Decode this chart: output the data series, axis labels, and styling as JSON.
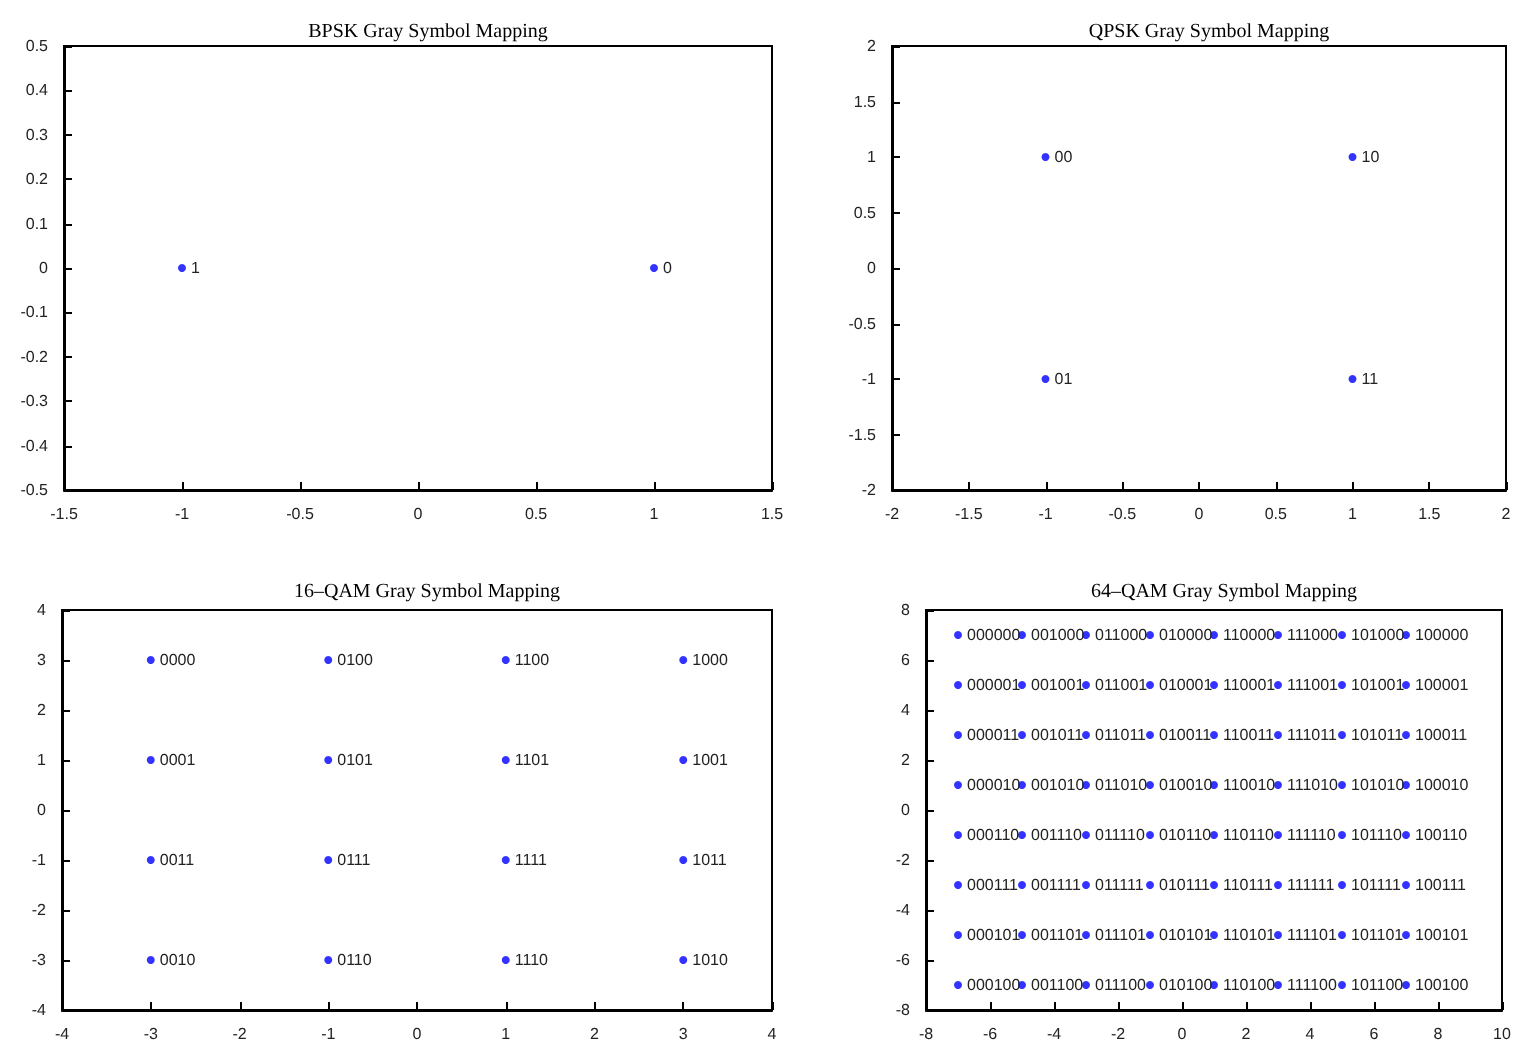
{
  "chart_data": [
    {
      "type": "scatter",
      "title": "BPSK Gray Symbol Mapping",
      "color": "#0000ff",
      "marker": "circle",
      "x": [
        -1,
        1
      ],
      "values": [
        0,
        0
      ],
      "annotations": [
        {
          "text": "1",
          "x": -1,
          "y": 0
        },
        {
          "text": "0",
          "x": 1,
          "y": 0
        }
      ],
      "xlim": [
        -1.5,
        1.5
      ],
      "xticks": [
        -1.5,
        -1,
        -0.5,
        0,
        0.5,
        1,
        1.5
      ],
      "ylim": [
        -0.5,
        0.5
      ],
      "yticks": [
        -0.5,
        -0.4,
        -0.3,
        -0.2,
        -0.1,
        0,
        0.1,
        0.2,
        0.3,
        0.4,
        0.5
      ]
    },
    {
      "type": "scatter",
      "title": "QPSK Gray Symbol Mapping",
      "color": "#0000ff",
      "marker": "circle",
      "x": [
        -1,
        1,
        -1,
        1
      ],
      "values": [
        1,
        1,
        -1,
        -1
      ],
      "annotations": [
        {
          "text": "00",
          "x": -1,
          "y": 1
        },
        {
          "text": "10",
          "x": 1,
          "y": 1
        },
        {
          "text": "01",
          "x": -1,
          "y": -1
        },
        {
          "text": "11",
          "x": 1,
          "y": -1
        }
      ],
      "xlim": [
        -2,
        2
      ],
      "xticks": [
        -2,
        -1.5,
        -1,
        -0.5,
        0,
        0.5,
        1,
        1.5,
        2
      ],
      "ylim": [
        -2,
        2
      ],
      "yticks": [
        -2,
        -1.5,
        -1,
        -0.5,
        0,
        0.5,
        1,
        1.5,
        2
      ]
    },
    {
      "type": "scatter",
      "title": "16–QAM Gray Symbol Mapping",
      "color": "#0000ff",
      "marker": "circle",
      "x": [
        -3,
        -1,
        1,
        3,
        -3,
        -1,
        1,
        3,
        -3,
        -1,
        1,
        3,
        -3,
        -1,
        1,
        3
      ],
      "values": [
        3,
        3,
        3,
        3,
        1,
        1,
        1,
        1,
        -1,
        -1,
        -1,
        -1,
        -3,
        -3,
        -3,
        -3
      ],
      "annotations": [
        {
          "text": "0000",
          "x": -3,
          "y": 3
        },
        {
          "text": "0100",
          "x": -1,
          "y": 3
        },
        {
          "text": "1100",
          "x": 1,
          "y": 3
        },
        {
          "text": "1000",
          "x": 3,
          "y": 3
        },
        {
          "text": "0001",
          "x": -3,
          "y": 1
        },
        {
          "text": "0101",
          "x": -1,
          "y": 1
        },
        {
          "text": "1101",
          "x": 1,
          "y": 1
        },
        {
          "text": "1001",
          "x": 3,
          "y": 1
        },
        {
          "text": "0011",
          "x": -3,
          "y": -1
        },
        {
          "text": "0111",
          "x": -1,
          "y": -1
        },
        {
          "text": "1111",
          "x": 1,
          "y": -1
        },
        {
          "text": "1011",
          "x": 3,
          "y": -1
        },
        {
          "text": "0010",
          "x": -3,
          "y": -3
        },
        {
          "text": "0110",
          "x": -1,
          "y": -3
        },
        {
          "text": "1110",
          "x": 1,
          "y": -3
        },
        {
          "text": "1010",
          "x": 3,
          "y": -3
        }
      ],
      "xlim": [
        -4,
        4
      ],
      "xticks": [
        -4,
        -3,
        -2,
        -1,
        0,
        1,
        2,
        3,
        4
      ],
      "ylim": [
        -4,
        4
      ],
      "yticks": [
        -4,
        -3,
        -2,
        -1,
        0,
        1,
        2,
        3,
        4
      ]
    },
    {
      "type": "scatter",
      "title": "64–QAM Gray Symbol Mapping",
      "color": "#0000ff",
      "marker": "circle",
      "x": [
        -7,
        -5,
        -3,
        -1,
        1,
        3,
        5,
        7,
        -7,
        -5,
        -3,
        -1,
        1,
        3,
        5,
        7,
        -7,
        -5,
        -3,
        -1,
        1,
        3,
        5,
        7,
        -7,
        -5,
        -3,
        -1,
        1,
        3,
        5,
        7,
        -7,
        -5,
        -3,
        -1,
        1,
        3,
        5,
        7,
        -7,
        -5,
        -3,
        -1,
        1,
        3,
        5,
        7,
        -7,
        -5,
        -3,
        -1,
        1,
        3,
        5,
        7,
        -7,
        -5,
        -3,
        -1,
        1,
        3,
        5,
        7
      ],
      "values": [
        7,
        7,
        7,
        7,
        7,
        7,
        7,
        7,
        5,
        5,
        5,
        5,
        5,
        5,
        5,
        5,
        3,
        3,
        3,
        3,
        3,
        3,
        3,
        3,
        1,
        1,
        1,
        1,
        1,
        1,
        1,
        1,
        -1,
        -1,
        -1,
        -1,
        -1,
        -1,
        -1,
        -1,
        -3,
        -3,
        -3,
        -3,
        -3,
        -3,
        -3,
        -3,
        -5,
        -5,
        -5,
        -5,
        -5,
        -5,
        -5,
        -5,
        -7,
        -7,
        -7,
        -7,
        -7,
        -7,
        -7,
        -7
      ],
      "annotations": [
        {
          "text": "000000",
          "x": -7,
          "y": 7
        },
        {
          "text": "001000",
          "x": -5,
          "y": 7
        },
        {
          "text": "011000",
          "x": -3,
          "y": 7
        },
        {
          "text": "010000",
          "x": -1,
          "y": 7
        },
        {
          "text": "110000",
          "x": 1,
          "y": 7
        },
        {
          "text": "111000",
          "x": 3,
          "y": 7
        },
        {
          "text": "101000",
          "x": 5,
          "y": 7
        },
        {
          "text": "100000",
          "x": 7,
          "y": 7
        },
        {
          "text": "000001",
          "x": -7,
          "y": 5
        },
        {
          "text": "001001",
          "x": -5,
          "y": 5
        },
        {
          "text": "011001",
          "x": -3,
          "y": 5
        },
        {
          "text": "010001",
          "x": -1,
          "y": 5
        },
        {
          "text": "110001",
          "x": 1,
          "y": 5
        },
        {
          "text": "111001",
          "x": 3,
          "y": 5
        },
        {
          "text": "101001",
          "x": 5,
          "y": 5
        },
        {
          "text": "100001",
          "x": 7,
          "y": 5
        },
        {
          "text": "000011",
          "x": -7,
          "y": 3
        },
        {
          "text": "001011",
          "x": -5,
          "y": 3
        },
        {
          "text": "011011",
          "x": -3,
          "y": 3
        },
        {
          "text": "010011",
          "x": -1,
          "y": 3
        },
        {
          "text": "110011",
          "x": 1,
          "y": 3
        },
        {
          "text": "111011",
          "x": 3,
          "y": 3
        },
        {
          "text": "101011",
          "x": 5,
          "y": 3
        },
        {
          "text": "100011",
          "x": 7,
          "y": 3
        },
        {
          "text": "000010",
          "x": -7,
          "y": 1
        },
        {
          "text": "001010",
          "x": -5,
          "y": 1
        },
        {
          "text": "011010",
          "x": -3,
          "y": 1
        },
        {
          "text": "010010",
          "x": -1,
          "y": 1
        },
        {
          "text": "110010",
          "x": 1,
          "y": 1
        },
        {
          "text": "111010",
          "x": 3,
          "y": 1
        },
        {
          "text": "101010",
          "x": 5,
          "y": 1
        },
        {
          "text": "100010",
          "x": 7,
          "y": 1
        },
        {
          "text": "000110",
          "x": -7,
          "y": -1
        },
        {
          "text": "001110",
          "x": -5,
          "y": -1
        },
        {
          "text": "011110",
          "x": -3,
          "y": -1
        },
        {
          "text": "010110",
          "x": -1,
          "y": -1
        },
        {
          "text": "110110",
          "x": 1,
          "y": -1
        },
        {
          "text": "111110",
          "x": 3,
          "y": -1
        },
        {
          "text": "101110",
          "x": 5,
          "y": -1
        },
        {
          "text": "100110",
          "x": 7,
          "y": -1
        },
        {
          "text": "000111",
          "x": -7,
          "y": -3
        },
        {
          "text": "001111",
          "x": -5,
          "y": -3
        },
        {
          "text": "011111",
          "x": -3,
          "y": -3
        },
        {
          "text": "010111",
          "x": -1,
          "y": -3
        },
        {
          "text": "110111",
          "x": 1,
          "y": -3
        },
        {
          "text": "111111",
          "x": 3,
          "y": -3
        },
        {
          "text": "101111",
          "x": 5,
          "y": -3
        },
        {
          "text": "100111",
          "x": 7,
          "y": -3
        },
        {
          "text": "000101",
          "x": -7,
          "y": -5
        },
        {
          "text": "001101",
          "x": -5,
          "y": -5
        },
        {
          "text": "011101",
          "x": -3,
          "y": -5
        },
        {
          "text": "010101",
          "x": -1,
          "y": -5
        },
        {
          "text": "110101",
          "x": 1,
          "y": -5
        },
        {
          "text": "111101",
          "x": 3,
          "y": -5
        },
        {
          "text": "101101",
          "x": 5,
          "y": -5
        },
        {
          "text": "100101",
          "x": 7,
          "y": -5
        },
        {
          "text": "000100",
          "x": -7,
          "y": -7
        },
        {
          "text": "001100",
          "x": -5,
          "y": -7
        },
        {
          "text": "011100",
          "x": -3,
          "y": -7
        },
        {
          "text": "010100",
          "x": -1,
          "y": -7
        },
        {
          "text": "110100",
          "x": 1,
          "y": -7
        },
        {
          "text": "111100",
          "x": 3,
          "y": -7
        },
        {
          "text": "101100",
          "x": 5,
          "y": -7
        },
        {
          "text": "100100",
          "x": 7,
          "y": -7
        }
      ],
      "xlim": [
        -8,
        10
      ],
      "xticks": [
        -8,
        -6,
        -4,
        -2,
        0,
        2,
        4,
        6,
        8,
        10
      ],
      "ylim": [
        -8,
        8
      ],
      "yticks": [
        -8,
        -6,
        -4,
        -2,
        0,
        2,
        4,
        6,
        8
      ]
    }
  ]
}
